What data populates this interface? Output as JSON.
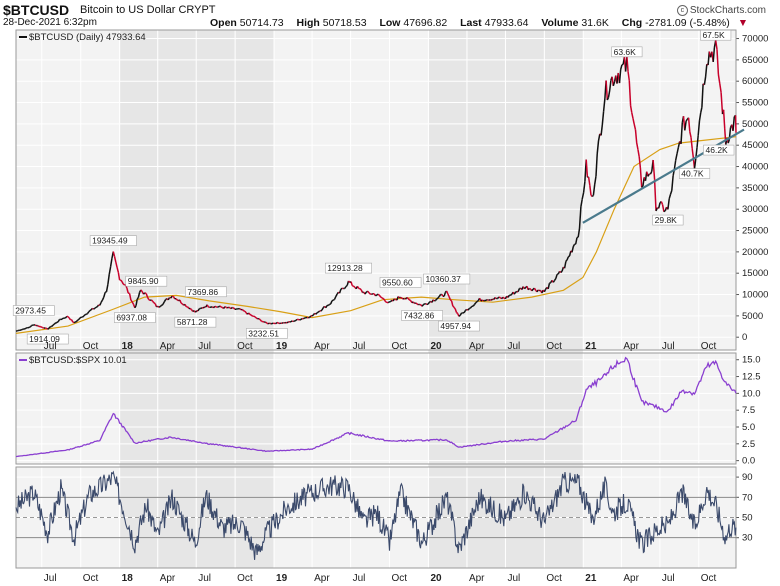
{
  "header": {
    "symbol": "$BTCUSD",
    "name": "Bitcoin to US Dollar",
    "exchange": "CRYPT",
    "date": "28-Dec-2021 6:32pm",
    "brand": "StockCharts.com",
    "brand_icon": "copyright-icon",
    "quote": {
      "open_label": "Open",
      "open": "50714.73",
      "high_label": "High",
      "high": "50718.53",
      "low_label": "Low",
      "low": "47696.82",
      "last_label": "Last",
      "last": "47933.64",
      "volume_label": "Volume",
      "volume": "31.6K",
      "chg_label": "Chg",
      "chg": "-2781.09 (-5.48%)",
      "chg_icon": "triangle-down-icon"
    }
  },
  "colors": {
    "price_up": "#111111",
    "price_down": "#c8002a",
    "ma": "#d9a016",
    "trendline": "#4a7a8c",
    "ratio": "#8a3fd0",
    "rsi": "#3b4a6b",
    "shade": "#e6e6e6",
    "panel_bg": "#f3f3f3"
  },
  "chart_data": [
    {
      "type": "line",
      "legend": "$BTCUSD (Daily) 47933.64",
      "legend_position": "top-left",
      "grid": true,
      "y_axis_position": "right",
      "ylim": [
        -3000,
        72000
      ],
      "yticks": [
        0,
        5000,
        10000,
        15000,
        20000,
        25000,
        30000,
        35000,
        40000,
        45000,
        50000,
        55000,
        60000,
        65000,
        70000
      ],
      "x_labels": [
        "Jul",
        "Oct",
        "18",
        "Apr",
        "Jul",
        "Oct",
        "19",
        "Apr",
        "Jul",
        "Oct",
        "20",
        "Apr",
        "Jul",
        "Oct",
        "21",
        "Apr",
        "Jul",
        "Oct"
      ],
      "x_range": [
        "2017-05-01",
        "2021-12-28"
      ],
      "shaded_years": [
        "2018",
        "2020"
      ],
      "series": [
        {
          "name": "$BTCUSD",
          "points": [
            [
              "2017-05-01",
              1400
            ],
            [
              "2017-06-01",
              2300
            ],
            [
              "2017-06-12",
              2973
            ],
            [
              "2017-07-15",
              1914
            ],
            [
              "2017-08-15",
              4200
            ],
            [
              "2017-09-01",
              4900
            ],
            [
              "2017-09-15",
              3300
            ],
            [
              "2017-10-20",
              6000
            ],
            [
              "2017-11-15",
              7500
            ],
            [
              "2017-12-01",
              11000
            ],
            [
              "2017-12-17",
              19345
            ],
            [
              "2018-01-01",
              14000
            ],
            [
              "2018-01-15",
              12000
            ],
            [
              "2018-02-06",
              6937
            ],
            [
              "2018-02-20",
              11000
            ],
            [
              "2018-03-05",
              9845
            ],
            [
              "2018-04-01",
              7000
            ],
            [
              "2018-05-05",
              9800
            ],
            [
              "2018-06-29",
              5871
            ],
            [
              "2018-07-24",
              7369
            ],
            [
              "2018-09-01",
              7000
            ],
            [
              "2018-10-15",
              6400
            ],
            [
              "2018-11-20",
              4500
            ],
            [
              "2018-12-15",
              3232
            ],
            [
              "2019-02-01",
              3400
            ],
            [
              "2019-04-01",
              5000
            ],
            [
              "2019-05-15",
              8000
            ],
            [
              "2019-06-26",
              12913
            ],
            [
              "2019-08-01",
              10500
            ],
            [
              "2019-09-01",
              10000
            ],
            [
              "2019-10-01",
              8000
            ],
            [
              "2019-10-27",
              9550
            ],
            [
              "2019-12-17",
              7432
            ],
            [
              "2020-01-15",
              8800
            ],
            [
              "2020-02-13",
              10360
            ],
            [
              "2020-03-13",
              4957
            ],
            [
              "2020-05-01",
              8800
            ],
            [
              "2020-07-01",
              9200
            ],
            [
              "2020-08-15",
              11800
            ],
            [
              "2020-10-01",
              10700
            ],
            [
              "2020-11-15",
              16000
            ],
            [
              "2020-12-20",
              24000
            ],
            [
              "2021-01-08",
              40000
            ],
            [
              "2021-01-22",
              32000
            ],
            [
              "2021-02-21",
              57000
            ],
            [
              "2021-03-13",
              61000
            ],
            [
              "2021-04-14",
              63600
            ],
            [
              "2021-05-19",
              36000
            ],
            [
              "2021-06-15",
              40000
            ],
            [
              "2021-06-22",
              31000
            ],
            [
              "2021-07-20",
              29800
            ],
            [
              "2021-08-23",
              49000
            ],
            [
              "2021-09-07",
              52000
            ],
            [
              "2021-09-21",
              40700
            ],
            [
              "2021-10-20",
              66000
            ],
            [
              "2021-11-10",
              67500
            ],
            [
              "2021-11-26",
              54000
            ],
            [
              "2021-12-04",
              46200
            ],
            [
              "2021-12-15",
              48500
            ],
            [
              "2021-12-27",
              51000
            ],
            [
              "2021-12-28",
              47933
            ]
          ]
        },
        {
          "name": "200-day moving average",
          "points": [
            [
              "2017-05-01",
              900
            ],
            [
              "2017-09-01",
              2600
            ],
            [
              "2017-12-15",
              6500
            ],
            [
              "2018-03-01",
              9400
            ],
            [
              "2018-05-15",
              9800
            ],
            [
              "2018-08-01",
              8500
            ],
            [
              "2018-11-01",
              7200
            ],
            [
              "2019-01-15",
              6000
            ],
            [
              "2019-04-01",
              4600
            ],
            [
              "2019-07-01",
              6200
            ],
            [
              "2019-09-15",
              8800
            ],
            [
              "2019-12-15",
              9400
            ],
            [
              "2020-03-01",
              8800
            ],
            [
              "2020-06-01",
              8200
            ],
            [
              "2020-09-01",
              9400
            ],
            [
              "2020-11-15",
              11000
            ],
            [
              "2020-12-31",
              14000
            ],
            [
              "2021-02-01",
              20000
            ],
            [
              "2021-03-15",
              30000
            ],
            [
              "2021-05-01",
              40000
            ],
            [
              "2021-07-01",
              44000
            ],
            [
              "2021-08-15",
              45500
            ],
            [
              "2021-10-01",
              46000
            ],
            [
              "2021-12-28",
              47000
            ]
          ]
        },
        {
          "name": "trendline",
          "points": [
            [
              "2020-12-31",
              26800
            ],
            [
              "2021-12-28",
              47500
            ]
          ]
        }
      ],
      "annotations": [
        {
          "x": "2017-06-12",
          "y": 2973,
          "label": "2973.45"
        },
        {
          "x": "2017-07-15",
          "y": 1914,
          "label": "1914.09"
        },
        {
          "x": "2017-12-17",
          "y": 19345,
          "label": "19345.49"
        },
        {
          "x": "2018-02-06",
          "y": 6937,
          "label": "6937.08"
        },
        {
          "x": "2018-03-05",
          "y": 9845,
          "label": "9845.90"
        },
        {
          "x": "2018-06-29",
          "y": 5871,
          "label": "5871.28"
        },
        {
          "x": "2018-07-24",
          "y": 7369,
          "label": "7369.86"
        },
        {
          "x": "2018-12-15",
          "y": 3232,
          "label": "3232.51"
        },
        {
          "x": "2019-06-26",
          "y": 12913,
          "label": "12913.28"
        },
        {
          "x": "2019-10-27",
          "y": 9550,
          "label": "9550.60"
        },
        {
          "x": "2019-12-17",
          "y": 7432,
          "label": "7432.86"
        },
        {
          "x": "2020-02-13",
          "y": 10360,
          "label": "10360.37"
        },
        {
          "x": "2020-03-13",
          "y": 4957,
          "label": "4957.94"
        },
        {
          "x": "2021-04-14",
          "y": 63600,
          "label": "63.6K"
        },
        {
          "x": "2021-07-20",
          "y": 29800,
          "label": "29.8K"
        },
        {
          "x": "2021-09-21",
          "y": 40700,
          "label": "40.7K"
        },
        {
          "x": "2021-11-10",
          "y": 67500,
          "label": "67.5K"
        },
        {
          "x": "2021-12-04",
          "y": 46200,
          "label": "46.2K"
        }
      ]
    },
    {
      "type": "line",
      "legend": "$BTCUSD:$SPX 10.01",
      "legend_position": "top-left",
      "grid": true,
      "y_axis_position": "right",
      "ylim": [
        -0.5,
        16
      ],
      "yticks": [
        0.0,
        2.5,
        5.0,
        7.5,
        10.0,
        12.5,
        15.0
      ],
      "series": [
        {
          "name": "$BTCUSD:$SPX",
          "points": [
            [
              "2017-05-01",
              0.6
            ],
            [
              "2017-09-01",
              1.6
            ],
            [
              "2017-11-15",
              3.0
            ],
            [
              "2017-12-17",
              7.0
            ],
            [
              "2018-02-06",
              2.6
            ],
            [
              "2018-05-01",
              3.5
            ],
            [
              "2018-08-01",
              2.5
            ],
            [
              "2018-12-15",
              1.4
            ],
            [
              "2019-04-01",
              1.7
            ],
            [
              "2019-06-26",
              4.1
            ],
            [
              "2019-10-01",
              2.9
            ],
            [
              "2020-02-13",
              3.1
            ],
            [
              "2020-03-13",
              2.0
            ],
            [
              "2020-07-01",
              2.9
            ],
            [
              "2020-10-01",
              3.2
            ],
            [
              "2020-12-15",
              6.0
            ],
            [
              "2021-01-08",
              10.5
            ],
            [
              "2021-02-21",
              12.5
            ],
            [
              "2021-03-13",
              14.0
            ],
            [
              "2021-04-14",
              15.2
            ],
            [
              "2021-05-19",
              8.7
            ],
            [
              "2021-06-22",
              8.0
            ],
            [
              "2021-07-20",
              7.3
            ],
            [
              "2021-08-23",
              10.5
            ],
            [
              "2021-09-21",
              10.0
            ],
            [
              "2021-10-20",
              14.0
            ],
            [
              "2021-11-10",
              14.5
            ],
            [
              "2021-12-04",
              11.5
            ],
            [
              "2021-12-28",
              10.01
            ]
          ]
        }
      ]
    },
    {
      "type": "line",
      "legend": "",
      "grid": true,
      "y_axis_position": "right",
      "ylim": [
        0,
        100
      ],
      "yticks": [
        30,
        50,
        70,
        90
      ],
      "reference_lines": [
        30,
        50,
        70
      ],
      "x_labels": [
        "Jul",
        "Oct",
        "18",
        "Apr",
        "Jul",
        "Oct",
        "19",
        "Apr",
        "Jul",
        "Oct",
        "20",
        "Apr",
        "Jul",
        "Oct",
        "21",
        "Apr",
        "Jul",
        "Oct"
      ],
      "series": [
        {
          "name": "RSI",
          "points": [
            [
              "2017-05-01",
              60
            ],
            [
              "2017-06-12",
              75
            ],
            [
              "2017-07-15",
              35
            ],
            [
              "2017-08-15",
              78
            ],
            [
              "2017-09-15",
              30
            ],
            [
              "2017-10-20",
              72
            ],
            [
              "2017-12-17",
              90
            ],
            [
              "2018-02-06",
              25
            ],
            [
              "2018-03-05",
              62
            ],
            [
              "2018-04-01",
              32
            ],
            [
              "2018-05-05",
              70
            ],
            [
              "2018-06-29",
              25
            ],
            [
              "2018-07-24",
              72
            ],
            [
              "2018-09-01",
              40
            ],
            [
              "2018-10-15",
              45
            ],
            [
              "2018-11-20",
              15
            ],
            [
              "2018-12-15",
              35
            ],
            [
              "2019-02-01",
              60
            ],
            [
              "2019-04-01",
              75
            ],
            [
              "2019-05-15",
              82
            ],
            [
              "2019-06-26",
              80
            ],
            [
              "2019-08-01",
              45
            ],
            [
              "2019-09-01",
              55
            ],
            [
              "2019-10-01",
              25
            ],
            [
              "2019-10-27",
              75
            ],
            [
              "2019-12-17",
              25
            ],
            [
              "2020-02-13",
              70
            ],
            [
              "2020-03-13",
              18
            ],
            [
              "2020-05-01",
              70
            ],
            [
              "2020-07-01",
              48
            ],
            [
              "2020-08-15",
              75
            ],
            [
              "2020-10-01",
              45
            ],
            [
              "2020-11-15",
              85
            ],
            [
              "2020-12-20",
              85
            ],
            [
              "2021-01-22",
              48
            ],
            [
              "2021-02-21",
              80
            ],
            [
              "2021-03-13",
              55
            ],
            [
              "2021-04-14",
              65
            ],
            [
              "2021-05-19",
              22
            ],
            [
              "2021-06-22",
              38
            ],
            [
              "2021-07-20",
              42
            ],
            [
              "2021-08-23",
              75
            ],
            [
              "2021-09-21",
              40
            ],
            [
              "2021-10-20",
              78
            ],
            [
              "2021-11-10",
              62
            ],
            [
              "2021-12-04",
              30
            ],
            [
              "2021-12-15",
              42
            ],
            [
              "2021-12-28",
              40
            ]
          ]
        }
      ]
    }
  ]
}
